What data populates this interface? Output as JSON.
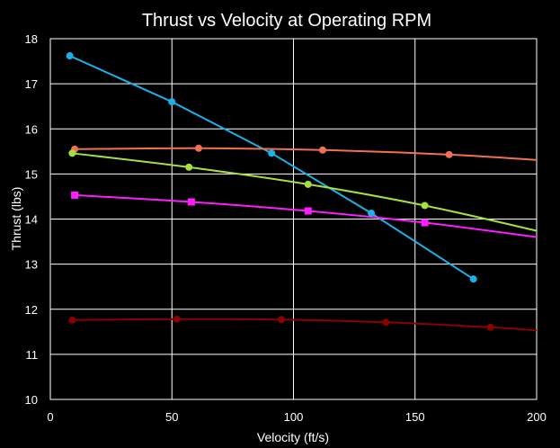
{
  "chart_data": {
    "type": "scatter",
    "title": "Thrust vs Velocity at Operating RPM",
    "xlabel": "Velocity (ft/s)",
    "ylabel": "Thrust (lbs)",
    "xlim": [
      0,
      200
    ],
    "ylim": [
      10,
      18
    ],
    "x_ticks": [
      "0",
      "50",
      "100",
      "150",
      "200"
    ],
    "y_ticks": [
      "10",
      "11",
      "12",
      "13",
      "14",
      "15",
      "16",
      "17",
      "18"
    ],
    "grid": true,
    "legend": "none",
    "background": "#000000",
    "series": [
      {
        "color": "#1cb0e8",
        "marker": "circle",
        "smooth": false,
        "points": [
          [
            8,
            17.62
          ],
          [
            50,
            16.6
          ],
          [
            91,
            15.46
          ],
          [
            132,
            14.13
          ],
          [
            174,
            12.67
          ]
        ]
      },
      {
        "color": "#f07052",
        "marker": "circle",
        "smooth": true,
        "extend_to": 200,
        "points": [
          [
            10,
            15.55
          ],
          [
            61,
            15.57
          ],
          [
            112,
            15.53
          ],
          [
            164,
            15.43
          ],
          [
            200,
            15.31
          ]
        ]
      },
      {
        "color": "#a6e040",
        "marker": "circle",
        "smooth": true,
        "extend_to": 200,
        "points": [
          [
            9,
            15.46
          ],
          [
            57,
            15.15
          ],
          [
            106,
            14.77
          ],
          [
            154,
            14.3
          ],
          [
            200,
            13.74
          ]
        ]
      },
      {
        "color": "#ff1cff",
        "marker": "square",
        "smooth": true,
        "extend_to": 200,
        "points": [
          [
            10,
            14.53
          ],
          [
            58,
            14.38
          ],
          [
            106,
            14.18
          ],
          [
            154,
            13.92
          ],
          [
            200,
            13.6
          ]
        ]
      },
      {
        "color": "#8b0000",
        "marker": "circle",
        "smooth": true,
        "extend_to": 200,
        "points": [
          [
            9,
            11.76
          ],
          [
            52,
            11.78
          ],
          [
            95,
            11.77
          ],
          [
            138,
            11.71
          ],
          [
            181,
            11.6
          ],
          [
            200,
            11.53
          ]
        ]
      }
    ]
  }
}
